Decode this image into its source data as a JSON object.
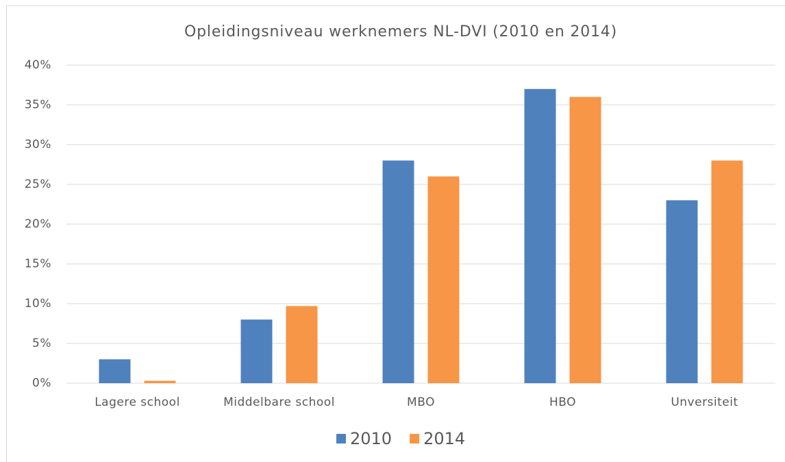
{
  "chart_data": {
    "type": "bar",
    "title": "Opleidingsniveau werknemers NL-DVI (2010 en 2014)",
    "categories": [
      "Lagere school",
      "Middelbare school",
      "MBO",
      "HBO",
      "Unversiteit"
    ],
    "series": [
      {
        "name": "2010",
        "color": "#4f81bd",
        "values": [
          3,
          8,
          28,
          37,
          23
        ]
      },
      {
        "name": "2014",
        "color": "#f79646",
        "values": [
          0.3,
          9.7,
          26,
          36,
          28
        ]
      }
    ],
    "ylim": [
      0,
      40
    ],
    "yticks": [
      {
        "value": 0,
        "label": "0%"
      },
      {
        "value": 5,
        "label": "5%"
      },
      {
        "value": 10,
        "label": "10%"
      },
      {
        "value": 15,
        "label": "15%"
      },
      {
        "value": 20,
        "label": "20%"
      },
      {
        "value": 25,
        "label": "25%"
      },
      {
        "value": 30,
        "label": "30%"
      },
      {
        "value": 35,
        "label": "35%"
      },
      {
        "value": 40,
        "label": "40%"
      }
    ],
    "grid": true,
    "legend": "bottom"
  }
}
